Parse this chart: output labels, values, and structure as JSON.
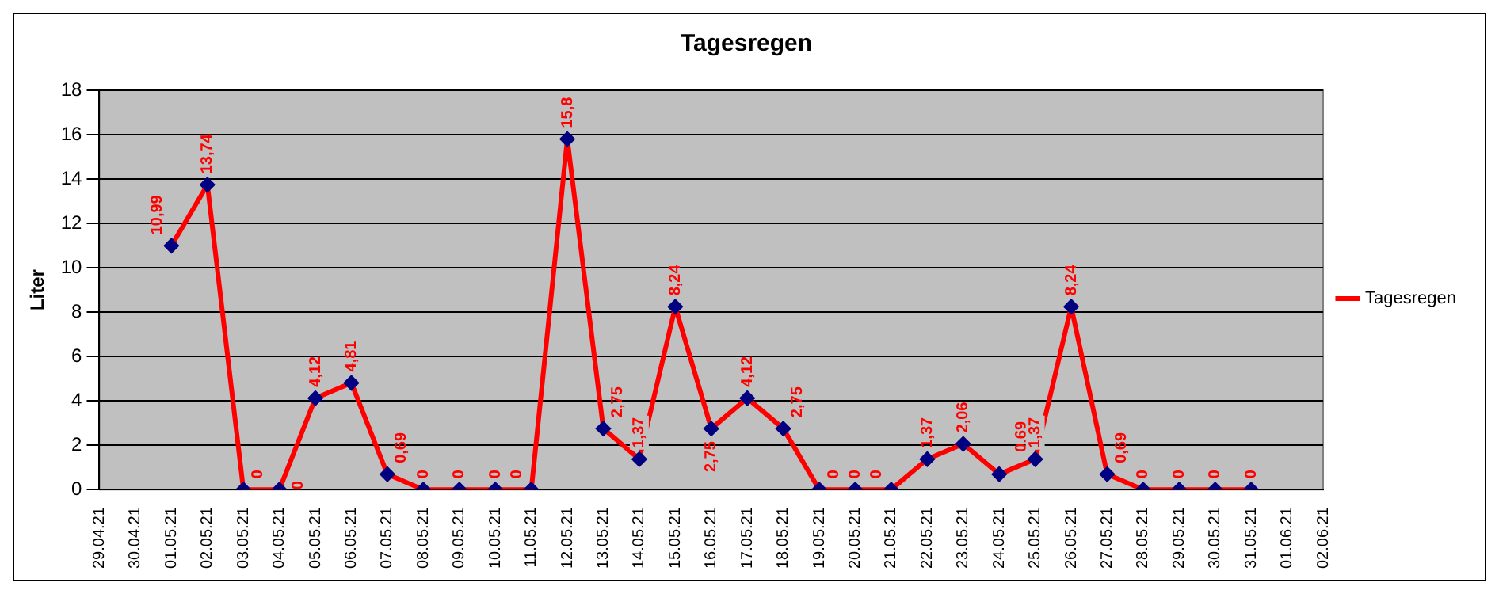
{
  "chart_data": {
    "type": "line",
    "title": "Tagesregen",
    "ylabel": "Liter",
    "categories": [
      "29.04.21",
      "30.04.21",
      "01.05.21",
      "02.05.21",
      "03.05.21",
      "04.05.21",
      "05.05.21",
      "06.05.21",
      "07.05.21",
      "08.05.21",
      "09.05.21",
      "10.05.21",
      "11.05.21",
      "12.05.21",
      "13.05.21",
      "14.05.21",
      "15.05.21",
      "16.05.21",
      "17.05.21",
      "18.05.21",
      "19.05.21",
      "20.05.21",
      "21.05.21",
      "22.05.21",
      "23.05.21",
      "24.05.21",
      "25.05.21",
      "26.05.21",
      "27.05.21",
      "28.05.21",
      "29.05.21",
      "30.05.21",
      "31.05.21",
      "01.06.21",
      "02.06.21"
    ],
    "series": [
      {
        "name": "Tagesregen",
        "color": "#ff0000",
        "values": [
          null,
          null,
          10.99,
          13.74,
          0,
          0,
          4.12,
          4.81,
          0.69,
          0,
          0,
          0,
          0,
          15.8,
          2.75,
          1.37,
          8.24,
          2.75,
          4.12,
          2.75,
          0,
          0,
          0,
          1.37,
          2.06,
          0.69,
          1.37,
          8.24,
          0.69,
          0,
          0,
          0,
          0,
          null,
          null
        ],
        "value_labels": [
          null,
          null,
          "10,99",
          "13,74",
          "0",
          "0",
          "4,12",
          "4,81",
          "0,69",
          "0",
          "0",
          "0",
          "0",
          "15,8",
          "2,75",
          "1,37",
          "8,24",
          "2,75",
          "4,12",
          "2,75",
          "0",
          "0",
          "0",
          "1,37",
          "2,06",
          "0,69",
          "1,37",
          "8,24",
          "0,69",
          "0",
          "0",
          "0",
          "0",
          null,
          null
        ]
      }
    ],
    "ylim": [
      0,
      18
    ],
    "yticks": [
      0,
      2,
      4,
      6,
      8,
      10,
      12,
      14,
      16,
      18
    ],
    "grid": "y",
    "legend": "right",
    "marker": "diamond",
    "line_style": "solid"
  }
}
